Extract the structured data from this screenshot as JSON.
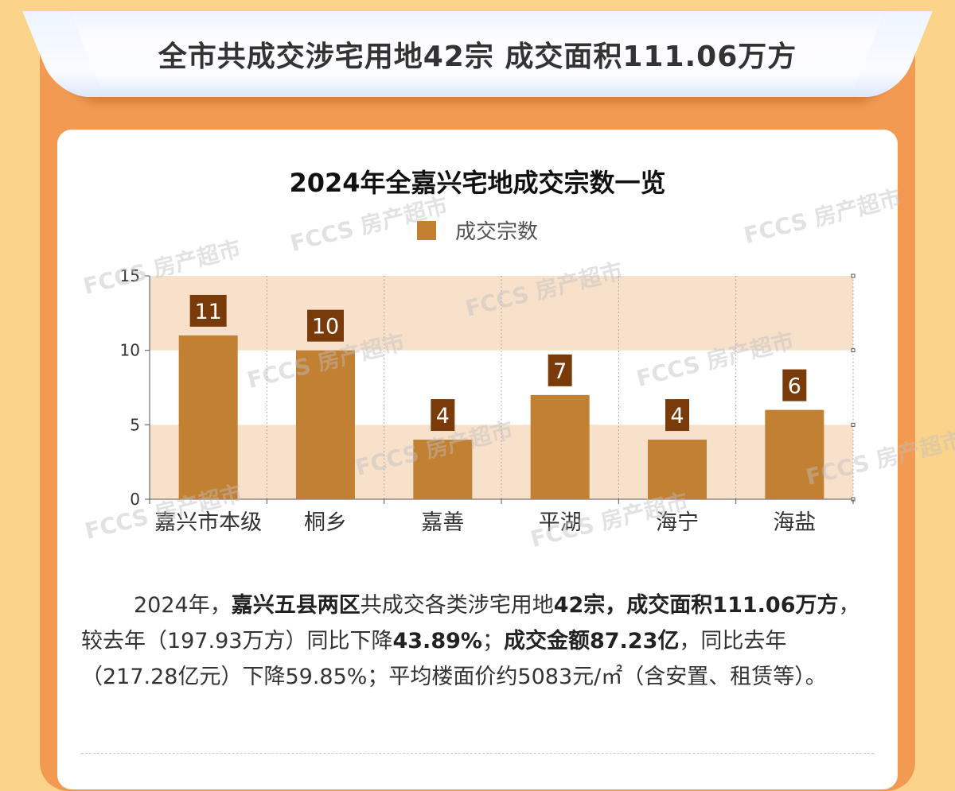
{
  "banner": {
    "title": "全市共成交涉宅用地42宗 成交面积111.06万方"
  },
  "watermark": {
    "text": "FCCS 房产超市"
  },
  "colors": {
    "bar": "#c28033",
    "label_box": "#7a3b0a",
    "band": "#f7e1cb",
    "outer": "#f39a52",
    "page": "#fbd38a"
  },
  "chart_data": {
    "type": "bar",
    "title": "2024年全嘉兴宅地成交宗数一览",
    "categories": [
      "嘉兴市本级",
      "桐乡",
      "嘉善",
      "平湖",
      "海宁",
      "海盐"
    ],
    "series": [
      {
        "name": "成交宗数",
        "values": [
          11,
          10,
          4,
          7,
          4,
          6
        ]
      }
    ],
    "ylim": [
      0,
      15
    ],
    "yticks": [
      0,
      5,
      10,
      15
    ],
    "data_labels": true,
    "legend": "top",
    "grid": "vertical dotted",
    "xlabel": "",
    "ylabel": ""
  },
  "summary": {
    "t1": "2024年，",
    "t2": "嘉兴五县两区",
    "t3": "共成交各类涉宅用地",
    "t4": "42宗，成交面积111.06万方",
    "t5": "，较去年（197.93万方）同比下降",
    "t6": "43.89%",
    "t7": "；",
    "t8": "成交金额87.23亿",
    "t9": "，同比去年（217.28亿元）下降59.85%；平均楼面价约5083元/㎡（含安置、租赁等）。"
  }
}
